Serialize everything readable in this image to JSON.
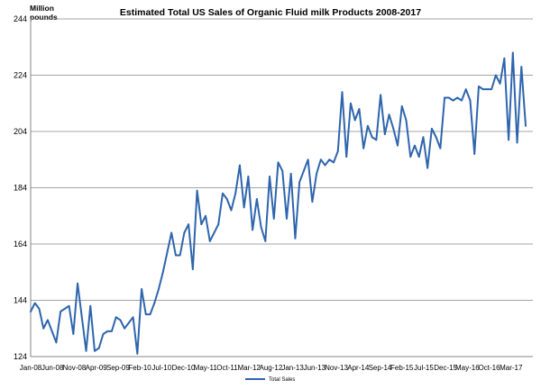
{
  "chart_data": {
    "type": "line",
    "title": "Estimated Total US Sales of Organic Fluid milk Products 2008-2017",
    "ylabel": "Million pounds",
    "xlabel": "",
    "ylim": [
      124,
      244
    ],
    "yticks": [
      "124",
      "144",
      "164",
      "184",
      "204",
      "224",
      "244"
    ],
    "xticks": [
      "Jan-08",
      "Jun-08",
      "Nov-08",
      "Apr-09",
      "Sep-09",
      "Feb-10",
      "Jul-10",
      "Dec-10",
      "May-11",
      "Oct-11",
      "Mar-12",
      "Aug-12",
      "Jan-13",
      "Jun-13",
      "Nov-13",
      "Apr-14",
      "Sep-14",
      "Feb-15",
      "Jul-15",
      "Dec-15",
      "May-16",
      "Oct-16",
      "Mar-17"
    ],
    "grid": true,
    "legend_position": "bottom",
    "series": [
      {
        "name": "Total Sales",
        "color": "#2e65ad",
        "values": [
          140,
          143,
          141,
          134,
          137,
          133,
          129,
          140,
          141,
          142,
          132,
          150,
          138,
          126,
          142,
          126,
          127,
          132,
          133,
          133,
          138,
          137,
          134,
          136,
          138,
          125,
          148,
          139,
          139,
          143,
          148,
          154,
          161,
          168,
          160,
          160,
          168,
          171,
          155,
          183,
          171,
          174,
          165,
          168,
          171,
          182,
          180,
          176,
          182,
          192,
          177,
          188,
          169,
          180,
          170,
          165,
          188,
          173,
          193,
          190,
          173,
          189,
          166,
          186,
          190,
          194,
          179,
          189,
          194,
          192,
          194,
          193,
          197,
          218,
          195,
          214,
          208,
          212,
          198,
          206,
          202,
          201,
          217,
          203,
          210,
          205,
          199,
          213,
          208,
          195,
          199,
          195,
          202,
          191,
          205,
          202,
          198,
          216,
          216,
          215,
          216,
          215,
          219,
          215,
          196,
          220,
          219,
          219,
          219,
          224,
          221,
          230,
          201,
          232,
          200,
          227,
          206
        ]
      }
    ]
  }
}
